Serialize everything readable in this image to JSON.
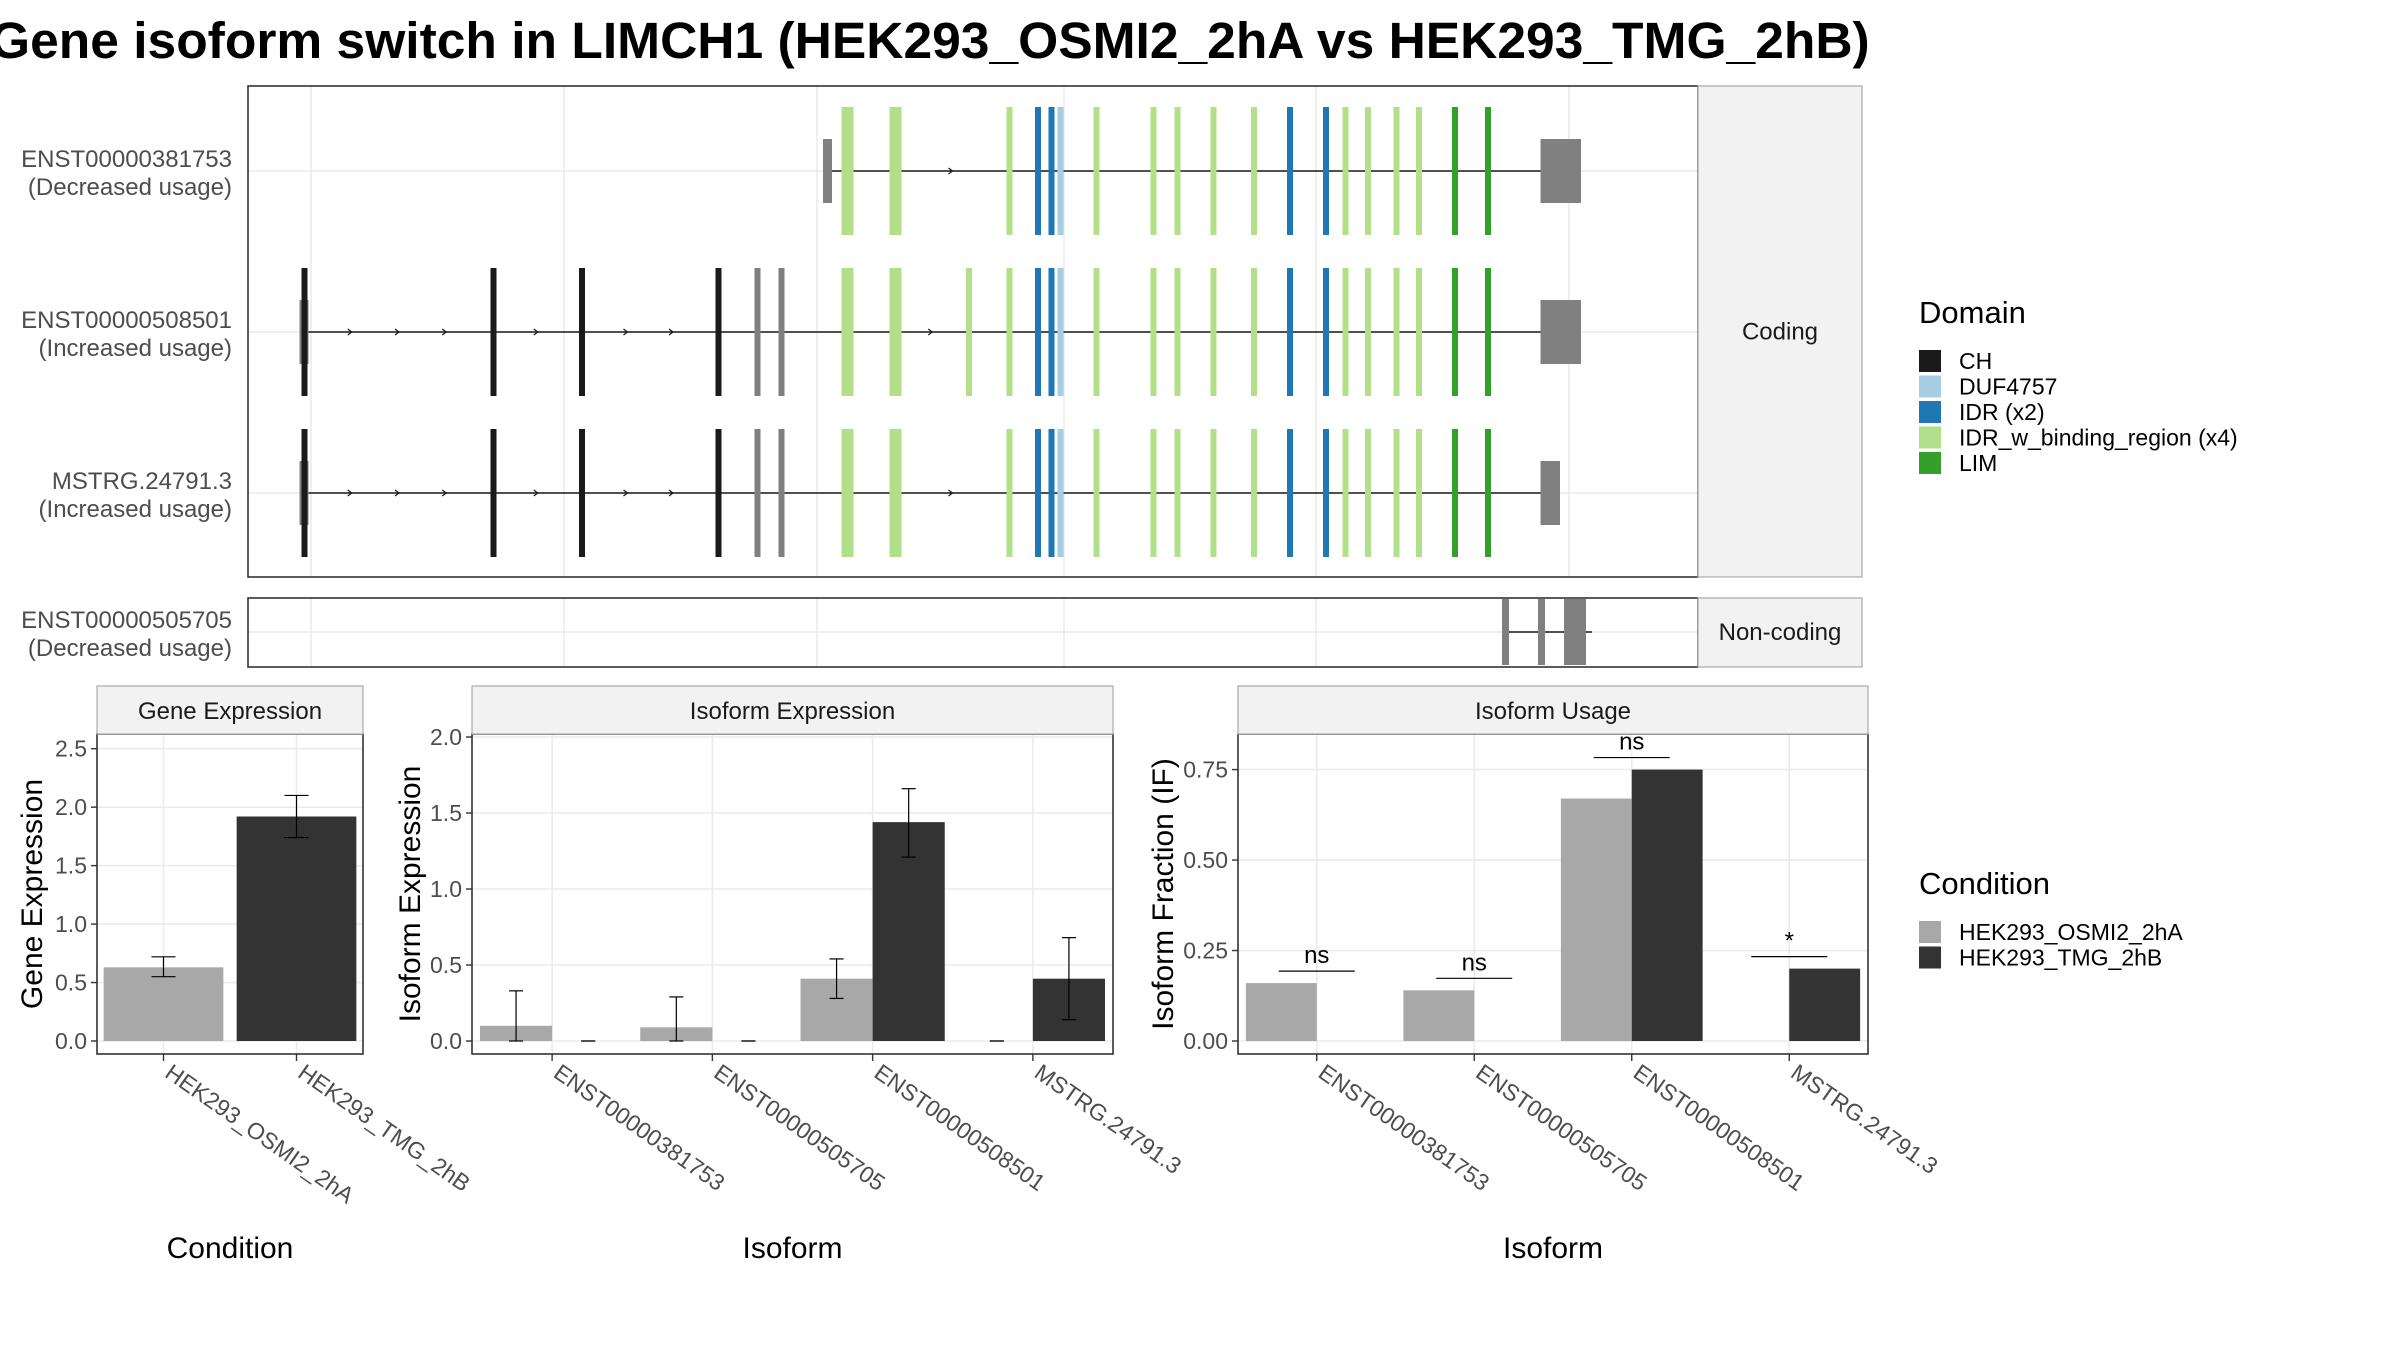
{
  "title": "Gene isoform switch in LIMCH1 (HEK293_OSMI2_2hA vs HEK293_TMG_2hB)",
  "structure": {
    "facet_coding": "Coding",
    "facet_noncoding": "Non-coding",
    "isoforms": [
      {
        "id": "ENST00000381753",
        "usage": "(Decreased usage)",
        "group": "coding",
        "row": 0
      },
      {
        "id": "ENST00000508501",
        "usage": "(Increased usage)",
        "group": "coding",
        "row": 1
      },
      {
        "id": "MSTRG.24791.3",
        "usage": "(Increased usage)",
        "group": "coding",
        "row": 2
      },
      {
        "id": "ENST00000505705",
        "usage": "(Decreased usage)",
        "group": "noncoding",
        "row": 0
      }
    ],
    "exon_positions": [
      203,
      329,
      388,
      479,
      505,
      521,
      565,
      597,
      646,
      673,
      692,
      701,
      707,
      731,
      769,
      785,
      809,
      836,
      860,
      884,
      897,
      912,
      931,
      946,
      970,
      992
    ],
    "exon_domains": [
      "CH",
      "CH",
      "CH",
      "CH",
      "none",
      "none",
      "IDR_w_binding_region (x4)",
      "IDR_w_binding_region (x4)",
      "IDR_w_binding_region (x4)",
      "IDR_w_binding_region (x4)",
      "IDR (x2)",
      "IDR (x2)",
      "DUF4757",
      "IDR_w_binding_region (x4)",
      "IDR_w_binding_region (x4)",
      "IDR_w_binding_region (x4)",
      "IDR_w_binding_region (x4)",
      "IDR_w_binding_region (x4)",
      "IDR (x2)",
      "IDR (x2)",
      "IDR_w_binding_region (x4)",
      "IDR_w_binding_region (x4)",
      "IDR_w_binding_region (x4)",
      "IDR_w_binding_region (x4)",
      "LIM",
      "LIM"
    ],
    "transcript_exons": [
      [
        565,
        597,
        673,
        692,
        701,
        707,
        731,
        769,
        785,
        809,
        836,
        860,
        884,
        897,
        912,
        931,
        946,
        970,
        992
      ],
      [
        203,
        329,
        388,
        479,
        505,
        521,
        565,
        597,
        646,
        673,
        692,
        701,
        707,
        731,
        769,
        785,
        809,
        836,
        860,
        884,
        897,
        912,
        931,
        946,
        970,
        992
      ],
      [
        203,
        329,
        388,
        479,
        505,
        521,
        565,
        597,
        673,
        692,
        701,
        707,
        731,
        769,
        785,
        809,
        836,
        860,
        884,
        897,
        912,
        931,
        946,
        970,
        992
      ]
    ],
    "tx_start": [
      552,
      203,
      203
    ],
    "tx_end": [
      1054,
      1054,
      1040
    ],
    "noncoding_exons": [
      1004,
      1028,
      1048
    ]
  },
  "legend_domain": {
    "title": "Domain",
    "items": [
      {
        "label": "CH",
        "color": "#1a1a1a"
      },
      {
        "label": "DUF4757",
        "color": "#a6cee3"
      },
      {
        "label": "IDR (x2)",
        "color": "#1f78b4"
      },
      {
        "label": "IDR_w_binding_region (x4)",
        "color": "#b2df8a"
      },
      {
        "label": "LIM",
        "color": "#33a02c"
      }
    ]
  },
  "legend_condition": {
    "title": "Condition",
    "items": [
      {
        "label": "HEK293_OSMI2_2hA",
        "color": "#a8a8a8"
      },
      {
        "label": "HEK293_TMG_2hB",
        "color": "#333333"
      }
    ]
  },
  "colors": {
    "noncoding_exon": "#808080",
    "intron": "#1a1a1a",
    "grid": "#ebebeb",
    "strip": "#f2f2f2"
  },
  "chart_data": [
    {
      "type": "bar",
      "title": "Gene Expression",
      "xlabel": "Condition",
      "ylabel": "Gene Expression",
      "ylim": [
        0,
        2.6
      ],
      "yticks": [
        "0.0",
        "0.5",
        "1.0",
        "1.5",
        "2.0",
        "2.5"
      ],
      "categories": [
        "HEK293_OSMI2_2hA",
        "HEK293_TMG_2hB"
      ],
      "values": [
        0.63,
        1.92
      ],
      "errors": [
        [
          0.55,
          0.72
        ],
        [
          1.74,
          2.1
        ]
      ]
    },
    {
      "type": "bar",
      "title": "Isoform Expression",
      "xlabel": "Isoform",
      "ylabel": "Isoform Expression",
      "ylim": [
        0,
        2.0
      ],
      "yticks": [
        "0.0",
        "0.5",
        "1.0",
        "1.5",
        "2.0"
      ],
      "categories": [
        "ENST00000381753",
        "ENST00000505705",
        "ENST00000508501",
        "MSTRG.24791.3"
      ],
      "series": [
        {
          "name": "HEK293_OSMI2_2hA",
          "values": [
            0.1,
            0.09,
            0.41,
            0.0
          ],
          "errors": [
            [
              0.0,
              0.33
            ],
            [
              0.0,
              0.29
            ],
            [
              0.28,
              0.54
            ],
            [
              0.0,
              0.0
            ]
          ]
        },
        {
          "name": "HEK293_TMG_2hB",
          "values": [
            0.0,
            0.0,
            1.44,
            0.41
          ],
          "errors": [
            [
              0.0,
              0.0
            ],
            [
              0.0,
              0.0
            ],
            [
              1.21,
              1.66
            ],
            [
              0.14,
              0.68
            ]
          ]
        }
      ]
    },
    {
      "type": "bar",
      "title": "Isoform Usage",
      "xlabel": "Isoform",
      "ylabel": "Isoform Fraction (IF)",
      "ylim": [
        0,
        0.84
      ],
      "yticks": [
        "0.00",
        "0.25",
        "0.50",
        "0.75"
      ],
      "categories": [
        "ENST00000381753",
        "ENST00000505705",
        "ENST00000508501",
        "MSTRG.24791.3"
      ],
      "series": [
        {
          "name": "HEK293_OSMI2_2hA",
          "values": [
            0.16,
            0.14,
            0.67,
            0.0
          ]
        },
        {
          "name": "HEK293_TMG_2hB",
          "values": [
            0.0,
            0.0,
            0.75,
            0.2
          ]
        }
      ],
      "significance": [
        "ns",
        "ns",
        "ns",
        "*"
      ]
    }
  ]
}
